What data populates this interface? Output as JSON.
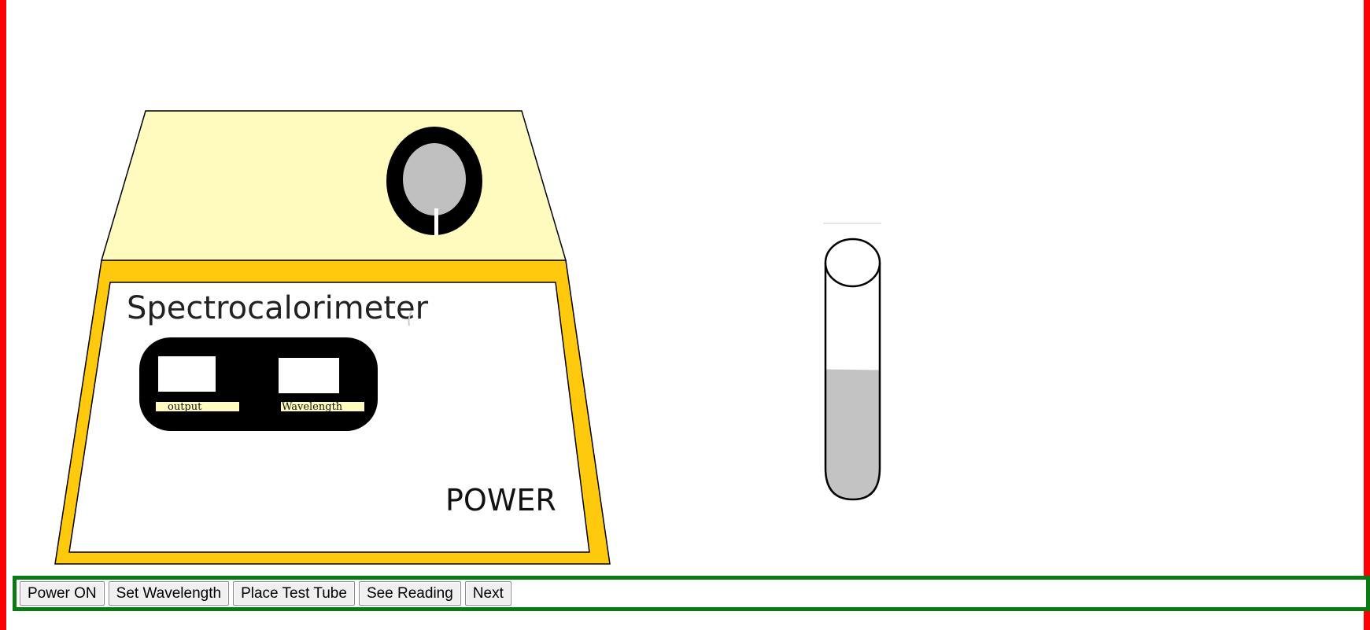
{
  "device": {
    "title": "Spectrocalorimeter",
    "output_label": "output",
    "wavelength_label": "Wavelength",
    "power_label": "POWER",
    "colors": {
      "top_panel": "#fffbbe",
      "frame": "#ffc90e",
      "front_panel": "#ffffff",
      "knob_ring": "#000000",
      "knob_center": "#c0c0c0",
      "display_box": "#000000",
      "label_strip": "#fffbbe"
    }
  },
  "test_tube": {
    "liquid_color": "#c3c3c3",
    "fill_fraction": 0.55
  },
  "toolbar": {
    "buttons": [
      {
        "id": "power-on",
        "label": "Power ON"
      },
      {
        "id": "set-wavelength",
        "label": "Set Wavelength"
      },
      {
        "id": "place-test-tube",
        "label": "Place Test Tube"
      },
      {
        "id": "see-reading",
        "label": "See Reading"
      },
      {
        "id": "next",
        "label": "Next"
      }
    ]
  }
}
